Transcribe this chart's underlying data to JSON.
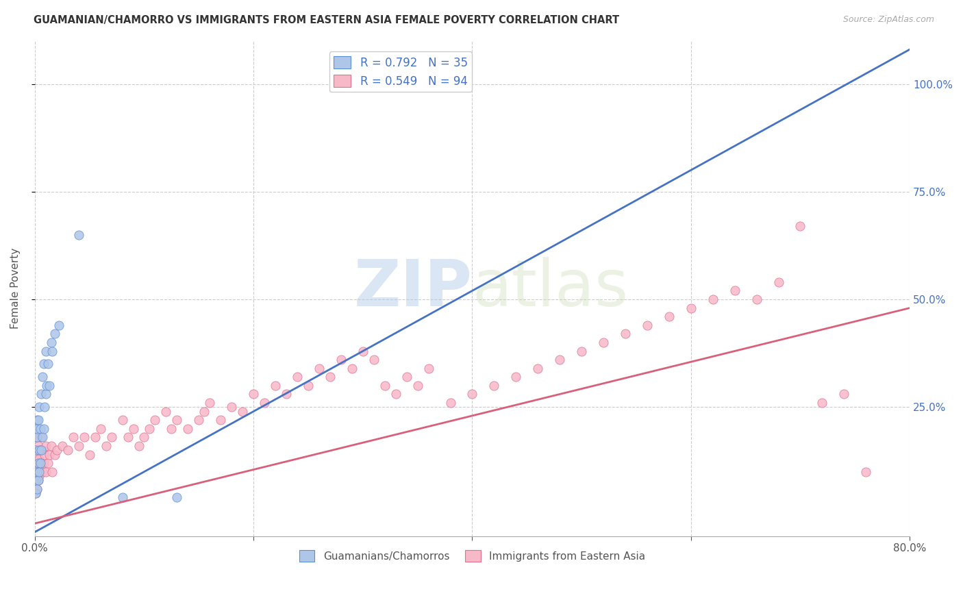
{
  "title": "GUAMANIAN/CHAMORRO VS IMMIGRANTS FROM EASTERN ASIA FEMALE POVERTY CORRELATION CHART",
  "source": "Source: ZipAtlas.com",
  "ylabel": "Female Poverty",
  "xlim": [
    0.0,
    0.8
  ],
  "ylim": [
    -0.05,
    1.1
  ],
  "xtick_vals": [
    0.0,
    0.2,
    0.4,
    0.6,
    0.8
  ],
  "xtick_labels": [
    "0.0%",
    "",
    "",
    "",
    "80.0%"
  ],
  "ytick_vals": [
    0.25,
    0.5,
    0.75,
    1.0
  ],
  "ytick_labels": [
    "25.0%",
    "50.0%",
    "75.0%",
    "100.0%"
  ],
  "blue_fill": "#aec6e8",
  "pink_fill": "#f7b8c8",
  "blue_edge": "#5b8fd4",
  "pink_edge": "#e07090",
  "blue_line_color": "#4472c4",
  "pink_line_color": "#d9607a",
  "blue_R": 0.792,
  "blue_N": 35,
  "pink_R": 0.549,
  "pink_N": 94,
  "legend_label_blue": "Guamanians/Chamorros",
  "legend_label_pink": "Immigrants from Eastern Asia",
  "watermark_ZIP": "ZIP",
  "watermark_atlas": "atlas",
  "background_color": "#ffffff",
  "grid_color": "#cccccc",
  "blue_line_x0": 0.0,
  "blue_line_y0": -0.04,
  "blue_line_x1": 0.8,
  "blue_line_y1": 1.08,
  "pink_line_x0": 0.0,
  "pink_line_y0": -0.02,
  "pink_line_x1": 0.8,
  "pink_line_y1": 0.48,
  "blue_pts_x": [
    0.001,
    0.001,
    0.001,
    0.002,
    0.002,
    0.002,
    0.002,
    0.002,
    0.003,
    0.003,
    0.003,
    0.004,
    0.004,
    0.004,
    0.005,
    0.005,
    0.006,
    0.006,
    0.007,
    0.007,
    0.008,
    0.008,
    0.009,
    0.01,
    0.01,
    0.011,
    0.012,
    0.013,
    0.015,
    0.016,
    0.018,
    0.022,
    0.04,
    0.08,
    0.13
  ],
  "blue_pts_y": [
    0.05,
    0.08,
    0.15,
    0.06,
    0.1,
    0.18,
    0.2,
    0.22,
    0.08,
    0.12,
    0.22,
    0.1,
    0.15,
    0.25,
    0.12,
    0.2,
    0.15,
    0.28,
    0.18,
    0.32,
    0.2,
    0.35,
    0.25,
    0.28,
    0.38,
    0.3,
    0.35,
    0.3,
    0.4,
    0.38,
    0.42,
    0.44,
    0.65,
    0.04,
    0.04
  ],
  "pink_pts_x": [
    0.001,
    0.001,
    0.001,
    0.001,
    0.001,
    0.002,
    0.002,
    0.002,
    0.002,
    0.003,
    0.003,
    0.003,
    0.004,
    0.004,
    0.005,
    0.005,
    0.006,
    0.006,
    0.007,
    0.007,
    0.008,
    0.009,
    0.01,
    0.01,
    0.012,
    0.013,
    0.015,
    0.016,
    0.018,
    0.02,
    0.025,
    0.03,
    0.035,
    0.04,
    0.045,
    0.05,
    0.055,
    0.06,
    0.065,
    0.07,
    0.08,
    0.085,
    0.09,
    0.095,
    0.1,
    0.105,
    0.11,
    0.12,
    0.125,
    0.13,
    0.14,
    0.15,
    0.155,
    0.16,
    0.17,
    0.18,
    0.19,
    0.2,
    0.21,
    0.22,
    0.23,
    0.24,
    0.25,
    0.26,
    0.27,
    0.28,
    0.29,
    0.3,
    0.31,
    0.32,
    0.33,
    0.34,
    0.35,
    0.36,
    0.38,
    0.4,
    0.42,
    0.44,
    0.46,
    0.48,
    0.5,
    0.52,
    0.54,
    0.56,
    0.58,
    0.6,
    0.62,
    0.64,
    0.66,
    0.68,
    0.7,
    0.72,
    0.74,
    0.76
  ],
  "pink_pts_y": [
    0.05,
    0.08,
    0.1,
    0.15,
    0.18,
    0.06,
    0.1,
    0.14,
    0.18,
    0.08,
    0.12,
    0.16,
    0.09,
    0.13,
    0.1,
    0.15,
    0.12,
    0.18,
    0.1,
    0.15,
    0.12,
    0.14,
    0.1,
    0.16,
    0.12,
    0.14,
    0.16,
    0.1,
    0.14,
    0.15,
    0.16,
    0.15,
    0.18,
    0.16,
    0.18,
    0.14,
    0.18,
    0.2,
    0.16,
    0.18,
    0.22,
    0.18,
    0.2,
    0.16,
    0.18,
    0.2,
    0.22,
    0.24,
    0.2,
    0.22,
    0.2,
    0.22,
    0.24,
    0.26,
    0.22,
    0.25,
    0.24,
    0.28,
    0.26,
    0.3,
    0.28,
    0.32,
    0.3,
    0.34,
    0.32,
    0.36,
    0.34,
    0.38,
    0.36,
    0.3,
    0.28,
    0.32,
    0.3,
    0.34,
    0.26,
    0.28,
    0.3,
    0.32,
    0.34,
    0.36,
    0.38,
    0.4,
    0.42,
    0.44,
    0.46,
    0.48,
    0.5,
    0.52,
    0.5,
    0.54,
    0.67,
    0.26,
    0.28,
    0.1
  ]
}
